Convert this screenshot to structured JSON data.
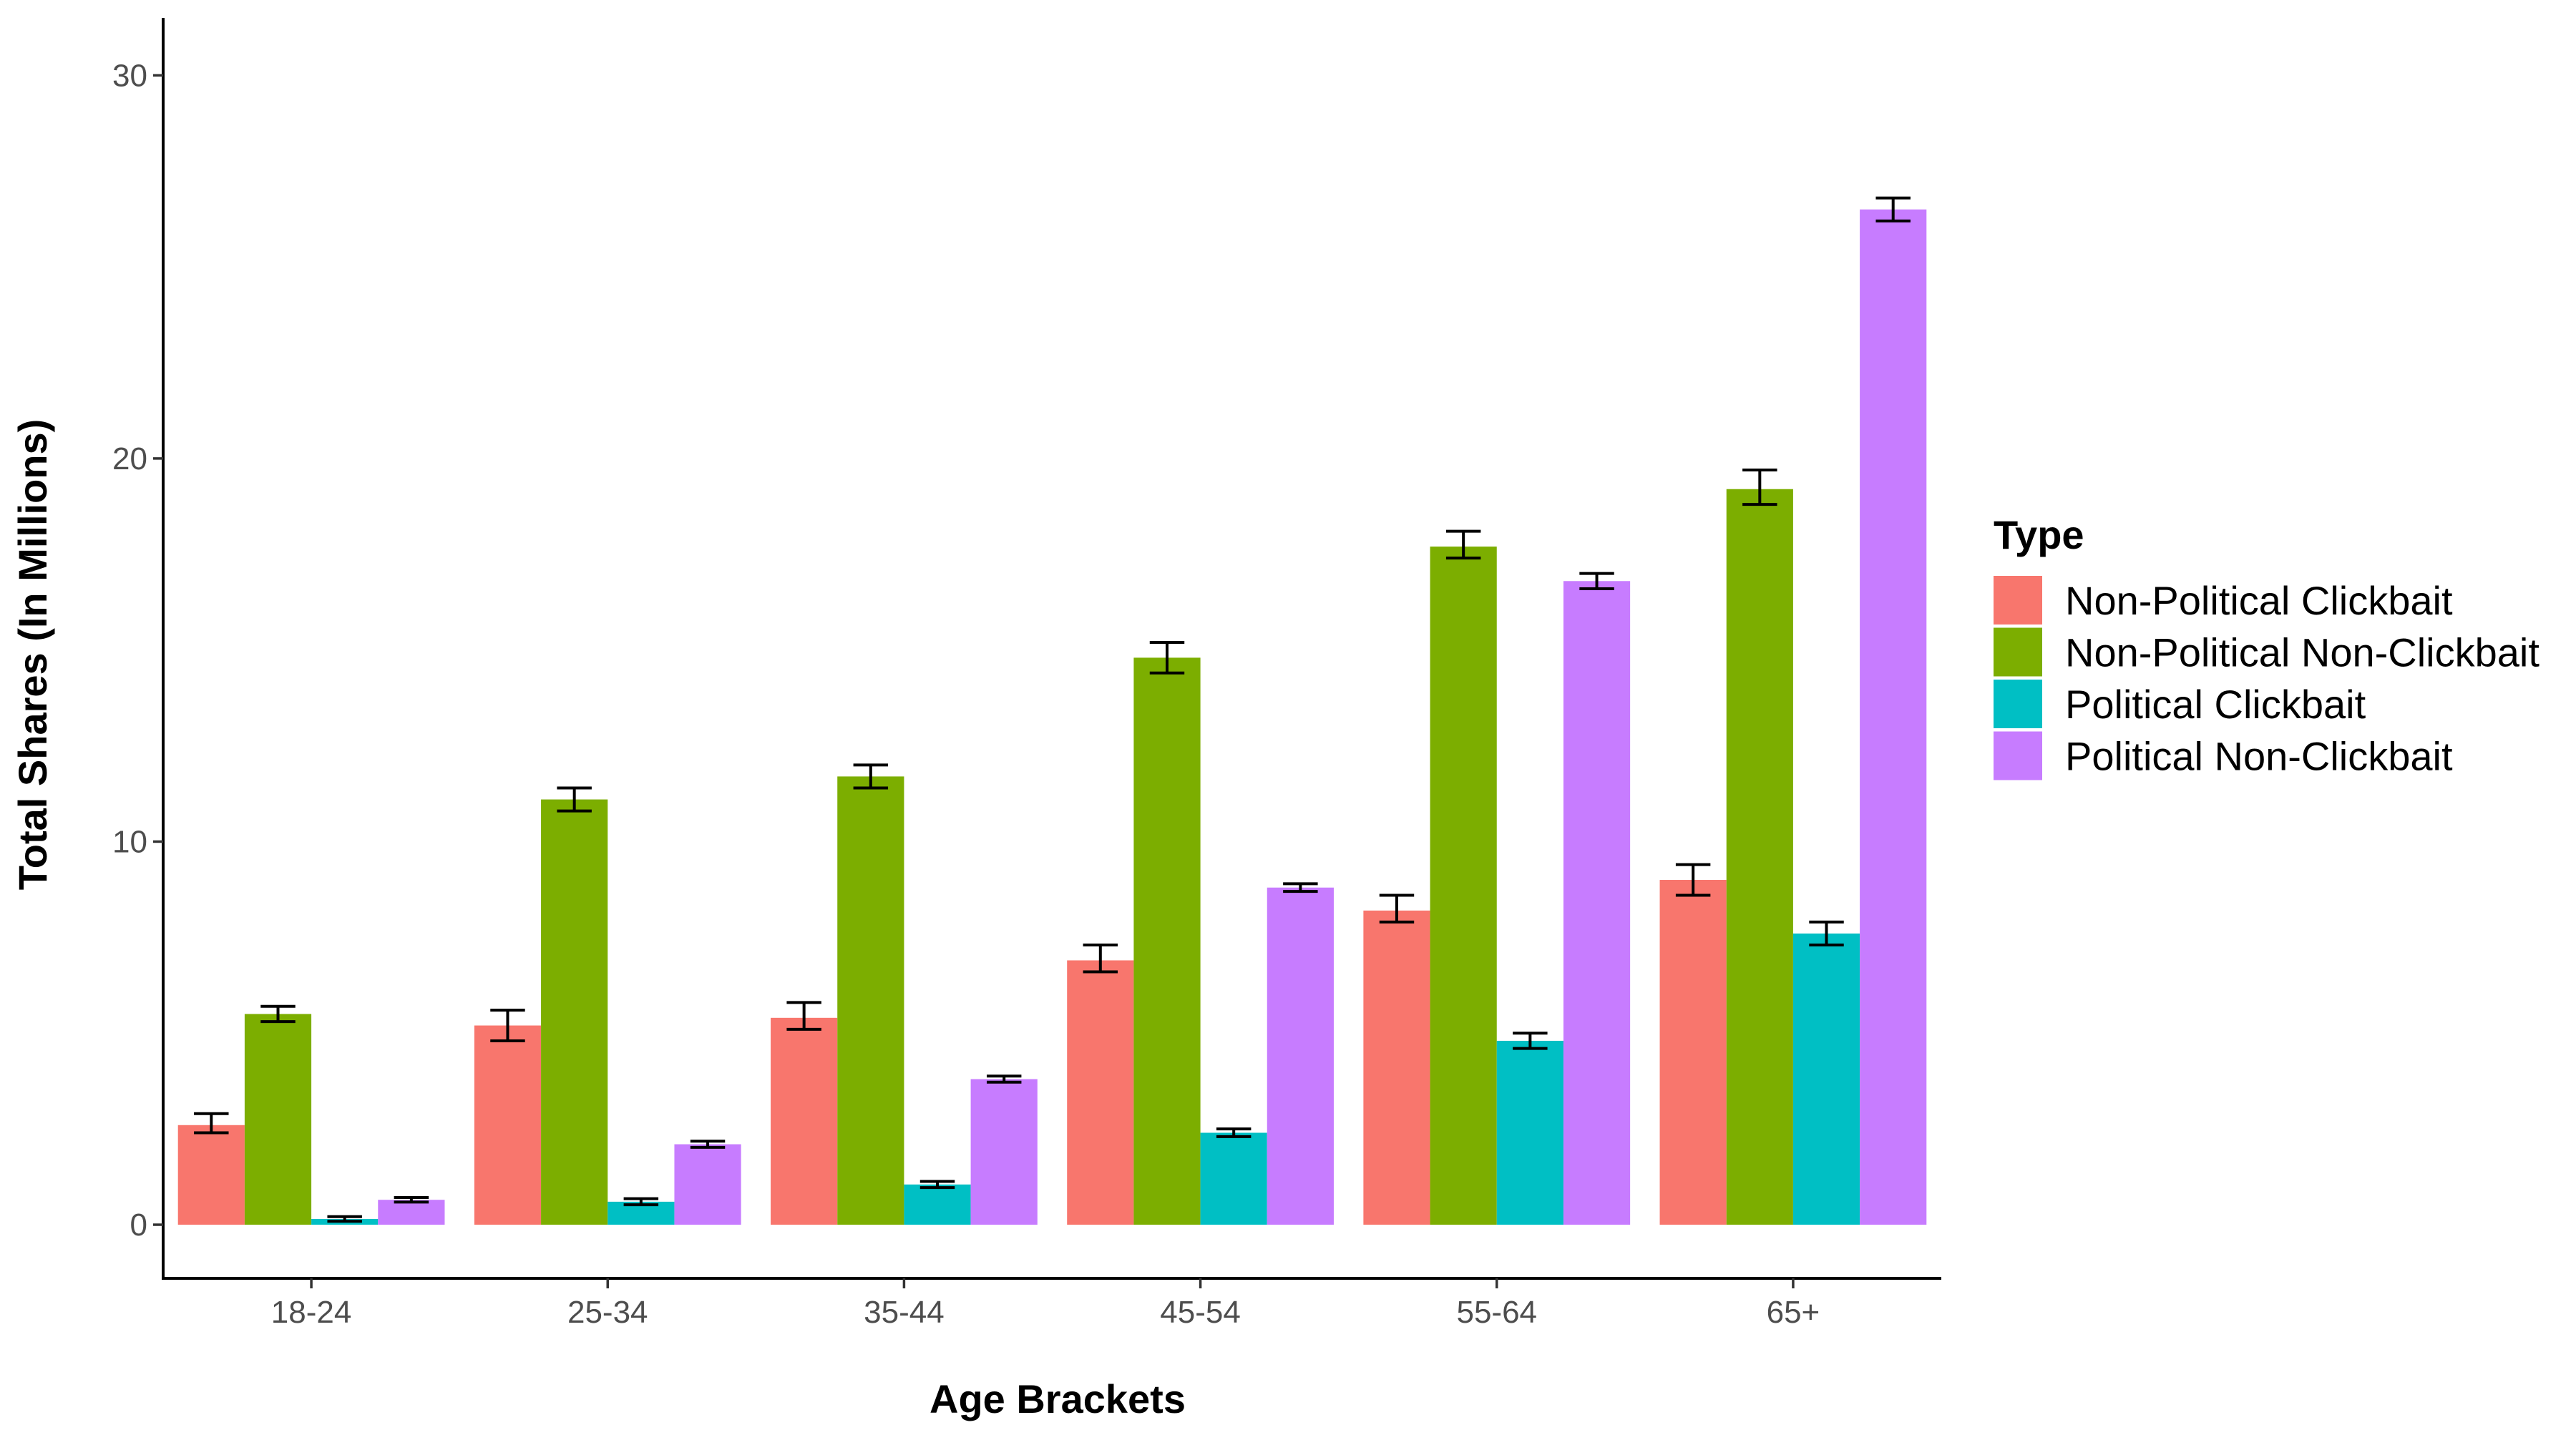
{
  "chart_data": {
    "type": "bar",
    "title": "",
    "xlabel": "Age Brackets",
    "ylabel": "Total Shares (In Millions)",
    "ylim": [
      -1.4,
      31.5
    ],
    "yticks": [
      0,
      10,
      20,
      30
    ],
    "categories": [
      "18-24",
      "25-34",
      "35-44",
      "45-54",
      "55-64",
      "65+"
    ],
    "legend_title": "Type",
    "legend_position": "right",
    "grid": false,
    "error_bars": true,
    "series": [
      {
        "name": "Non-Political Clickbait",
        "color": "#F8766D",
        "values": [
          2.6,
          5.2,
          5.4,
          6.9,
          8.2,
          9.0
        ],
        "err_low": [
          2.4,
          4.8,
          5.1,
          6.6,
          7.9,
          8.6
        ],
        "err_high": [
          2.9,
          5.6,
          5.8,
          7.3,
          8.6,
          9.4
        ]
      },
      {
        "name": "Non-Political Non-Clickbait",
        "color": "#7CAE00",
        "values": [
          5.5,
          11.1,
          11.7,
          14.8,
          17.7,
          19.2
        ],
        "err_low": [
          5.3,
          10.8,
          11.4,
          14.4,
          17.4,
          18.8
        ],
        "err_high": [
          5.7,
          11.4,
          12.0,
          15.2,
          18.1,
          19.7
        ]
      },
      {
        "name": "Political Clickbait",
        "color": "#00BFC4",
        "values": [
          0.15,
          0.6,
          1.05,
          2.4,
          4.8,
          7.6
        ],
        "err_low": [
          0.09,
          0.52,
          0.97,
          2.3,
          4.6,
          7.3
        ],
        "err_high": [
          0.21,
          0.68,
          1.13,
          2.5,
          5.0,
          7.9
        ]
      },
      {
        "name": "Political Non-Clickbait",
        "color": "#C77CFF",
        "values": [
          0.65,
          2.1,
          3.8,
          8.8,
          16.8,
          26.5
        ],
        "err_low": [
          0.59,
          2.02,
          3.72,
          8.7,
          16.6,
          26.2
        ],
        "err_high": [
          0.71,
          2.18,
          3.88,
          8.9,
          17.0,
          26.8
        ]
      }
    ]
  }
}
